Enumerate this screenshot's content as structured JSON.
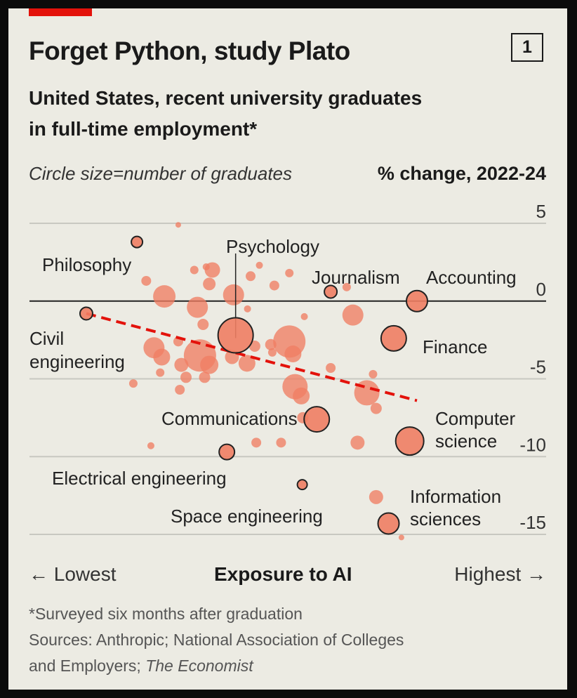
{
  "chart_number": "1",
  "colors": {
    "accent": "#e3120b",
    "bubble": "#ef7e63",
    "trend": "#e3120b",
    "text": "#1a1a1a"
  },
  "chart_data": {
    "type": "scatter",
    "title": "Forget Python, study Plato",
    "subtitle_lines": [
      "United States, recent university graduates",
      "in full-time employment*"
    ],
    "size_note": "Circle size=number of graduates",
    "ylabel": "% change, 2022-24",
    "xlabel": "Exposure to AI",
    "x_low_label": "← Lowest",
    "x_high_label": "Highest →",
    "xlim": [
      0,
      100
    ],
    "ylim": [
      -15,
      5
    ],
    "yticks": [
      5,
      0,
      -5,
      -10,
      -15
    ],
    "grid": true,
    "trend_line": [
      {
        "x": 11,
        "y": -0.8
      },
      {
        "x": 75,
        "y": -6.4
      }
    ],
    "labeled_points": [
      {
        "name": "Philosophy",
        "x": 20.8,
        "y": 3.8,
        "r": 8
      },
      {
        "name": "Psychology",
        "x": 39.9,
        "y": -2.2,
        "r": 25
      },
      {
        "name": "Journalism",
        "x": 58.3,
        "y": 0.6,
        "r": 9
      },
      {
        "name": "Accounting",
        "x": 75.0,
        "y": 0.0,
        "r": 15
      },
      {
        "name": "Civil engineering",
        "x": 11.0,
        "y": -0.8,
        "r": 9
      },
      {
        "name": "Finance",
        "x": 70.5,
        "y": -2.4,
        "r": 18
      },
      {
        "name": "Communications",
        "x": 55.6,
        "y": -7.6,
        "r": 18
      },
      {
        "name": "Computer science",
        "x": 73.6,
        "y": -9.0,
        "r": 20
      },
      {
        "name": "Electrical engineering",
        "x": 38.2,
        "y": -9.7,
        "r": 11
      },
      {
        "name": "Space engineering",
        "x": 52.8,
        "y": -11.8,
        "r": 7
      },
      {
        "name": "Information sciences",
        "x": 69.5,
        "y": -14.3,
        "r": 15
      }
    ],
    "other_points": [
      {
        "x": 28.8,
        "y": 4.9,
        "r": 4
      },
      {
        "x": 22.6,
        "y": 1.3,
        "r": 7
      },
      {
        "x": 26.1,
        "y": 0.3,
        "r": 16
      },
      {
        "x": 31.9,
        "y": 2.0,
        "r": 6
      },
      {
        "x": 34.2,
        "y": 2.2,
        "r": 5
      },
      {
        "x": 35.4,
        "y": 2.0,
        "r": 11
      },
      {
        "x": 34.8,
        "y": 1.1,
        "r": 9
      },
      {
        "x": 32.5,
        "y": -0.4,
        "r": 15
      },
      {
        "x": 33.6,
        "y": -1.5,
        "r": 8
      },
      {
        "x": 39.5,
        "y": 0.4,
        "r": 15
      },
      {
        "x": 42.8,
        "y": 1.6,
        "r": 7
      },
      {
        "x": 44.5,
        "y": 2.3,
        "r": 5
      },
      {
        "x": 47.4,
        "y": 1.0,
        "r": 7
      },
      {
        "x": 50.3,
        "y": 1.8,
        "r": 6
      },
      {
        "x": 42.2,
        "y": -0.5,
        "r": 5
      },
      {
        "x": 53.2,
        "y": -1.0,
        "r": 5
      },
      {
        "x": 61.4,
        "y": 0.9,
        "r": 6
      },
      {
        "x": 62.6,
        "y": -0.9,
        "r": 15
      },
      {
        "x": 50.3,
        "y": -2.6,
        "r": 23
      },
      {
        "x": 51.0,
        "y": -3.4,
        "r": 12
      },
      {
        "x": 24.1,
        "y": -3.0,
        "r": 15
      },
      {
        "x": 25.6,
        "y": -3.6,
        "r": 12
      },
      {
        "x": 33.0,
        "y": -3.5,
        "r": 23
      },
      {
        "x": 34.8,
        "y": -4.1,
        "r": 13
      },
      {
        "x": 28.8,
        "y": -2.6,
        "r": 7
      },
      {
        "x": 29.4,
        "y": -4.1,
        "r": 10
      },
      {
        "x": 39.2,
        "y": -3.6,
        "r": 10
      },
      {
        "x": 42.1,
        "y": -4.0,
        "r": 12
      },
      {
        "x": 43.6,
        "y": -2.9,
        "r": 8
      },
      {
        "x": 46.7,
        "y": -2.8,
        "r": 8
      },
      {
        "x": 47.0,
        "y": -3.3,
        "r": 6
      },
      {
        "x": 25.3,
        "y": -4.6,
        "r": 6
      },
      {
        "x": 30.3,
        "y": -4.9,
        "r": 8
      },
      {
        "x": 33.9,
        "y": -4.9,
        "r": 8
      },
      {
        "x": 20.1,
        "y": -5.3,
        "r": 6
      },
      {
        "x": 29.1,
        "y": -5.7,
        "r": 7
      },
      {
        "x": 51.4,
        "y": -5.5,
        "r": 18
      },
      {
        "x": 52.6,
        "y": -6.1,
        "r": 12
      },
      {
        "x": 58.3,
        "y": -4.3,
        "r": 7
      },
      {
        "x": 66.5,
        "y": -4.7,
        "r": 6
      },
      {
        "x": 65.3,
        "y": -5.9,
        "r": 18
      },
      {
        "x": 67.1,
        "y": -6.9,
        "r": 8
      },
      {
        "x": 52.9,
        "y": -7.5,
        "r": 8
      },
      {
        "x": 63.5,
        "y": -9.1,
        "r": 10
      },
      {
        "x": 43.9,
        "y": -9.1,
        "r": 7
      },
      {
        "x": 48.7,
        "y": -9.1,
        "r": 7
      },
      {
        "x": 23.5,
        "y": -9.3,
        "r": 5
      },
      {
        "x": 67.1,
        "y": -12.6,
        "r": 10
      },
      {
        "x": 72.0,
        "y": -15.2,
        "r": 4
      }
    ]
  },
  "footnote": "*Surveyed six months after graduation",
  "sources": {
    "line1": "Sources: Anthropic; National Association of Colleges",
    "line2_prefix": "and Employers; ",
    "line2_italic": "The Economist"
  }
}
